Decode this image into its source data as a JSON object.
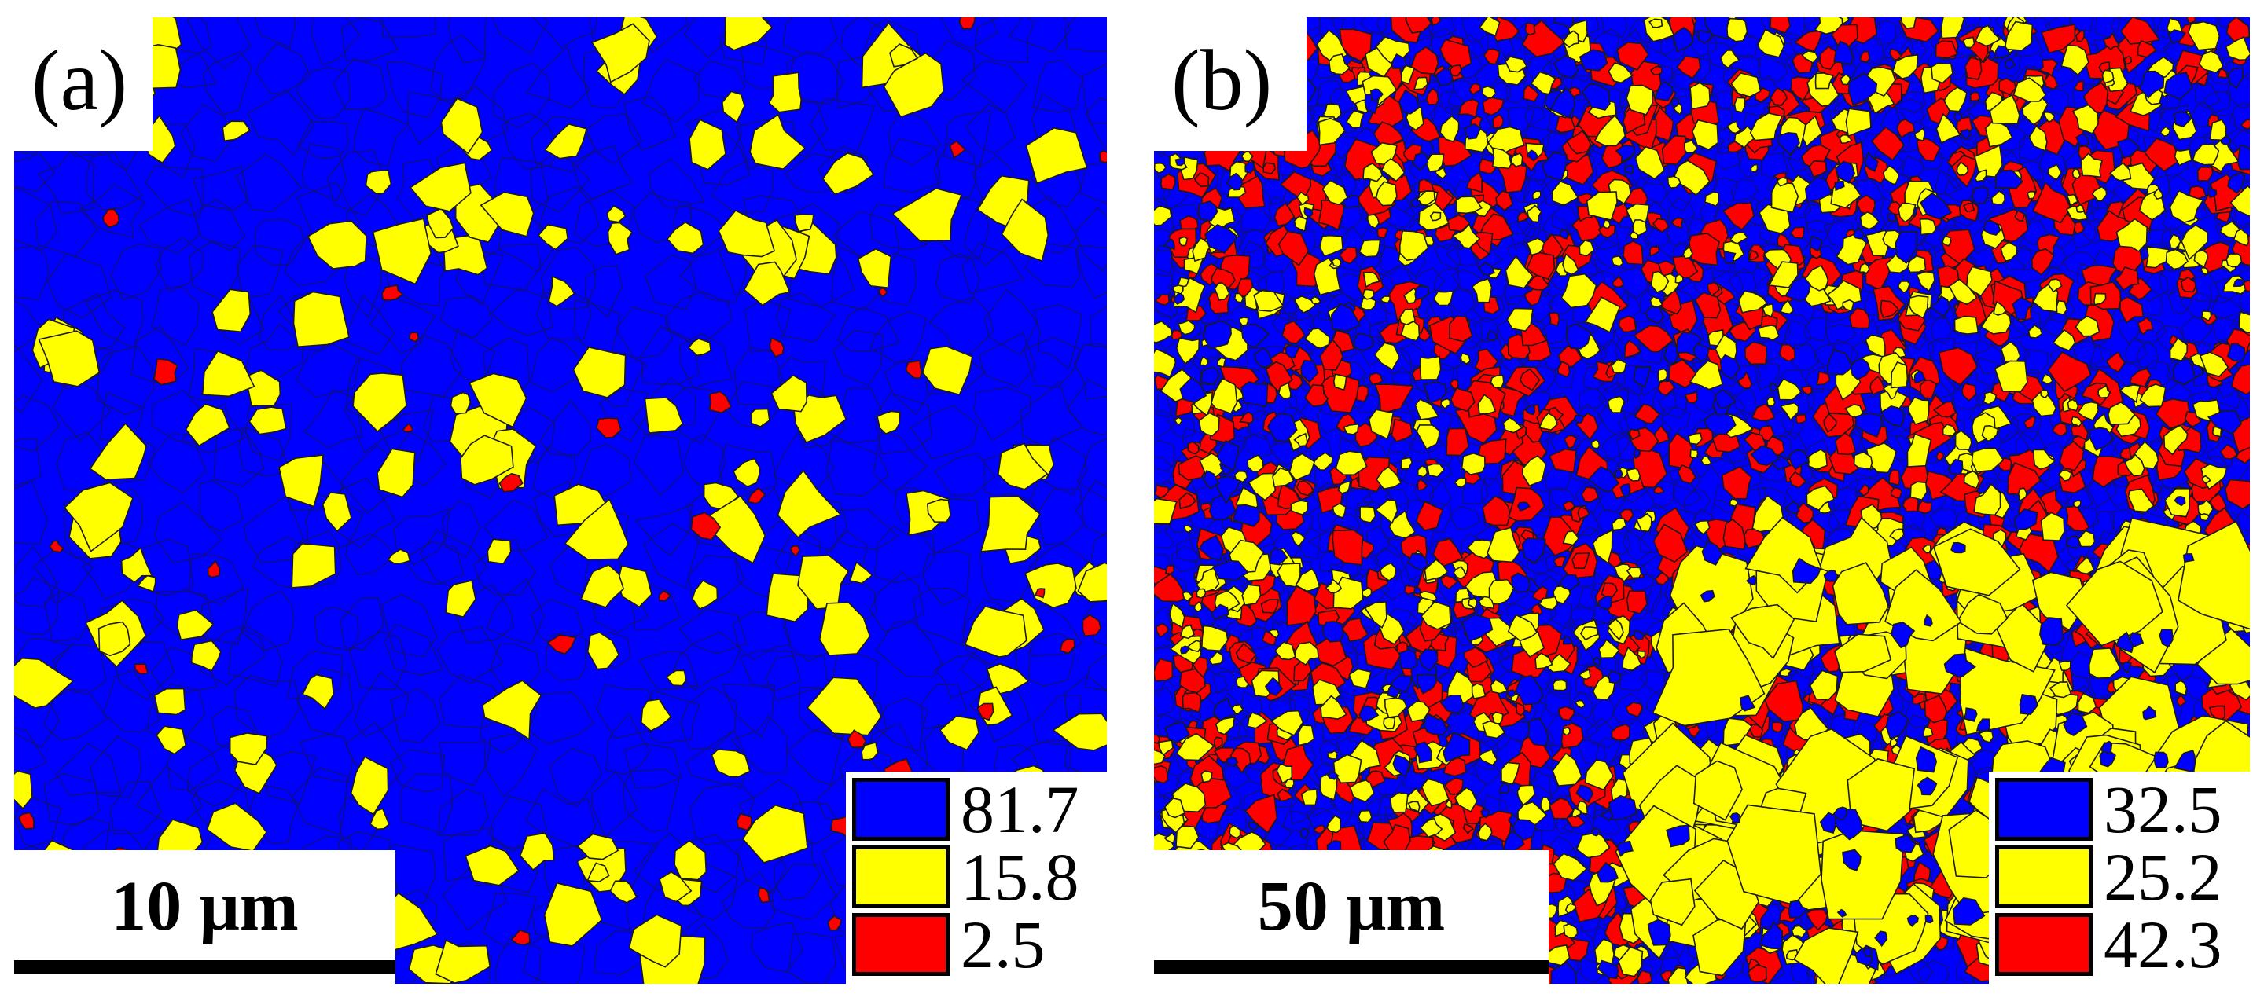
{
  "colors": {
    "blue": "#0000ff",
    "yellow": "#ffff00",
    "red": "#ff0000",
    "boundary": "#1a1a1a"
  },
  "panels": [
    {
      "label": "(a)",
      "scale_label": "10 μm",
      "legend": [
        {
          "color": "#0000ff",
          "value": "81.7"
        },
        {
          "color": "#ffff00",
          "value": "15.8"
        },
        {
          "color": "#ff0000",
          "value": "2.5"
        }
      ]
    },
    {
      "label": "(b)",
      "scale_label": "50 μm",
      "legend": [
        {
          "color": "#0000ff",
          "value": "32.5"
        },
        {
          "color": "#ffff00",
          "value": "25.2"
        },
        {
          "color": "#ff0000",
          "value": "42.3"
        }
      ]
    }
  ]
}
